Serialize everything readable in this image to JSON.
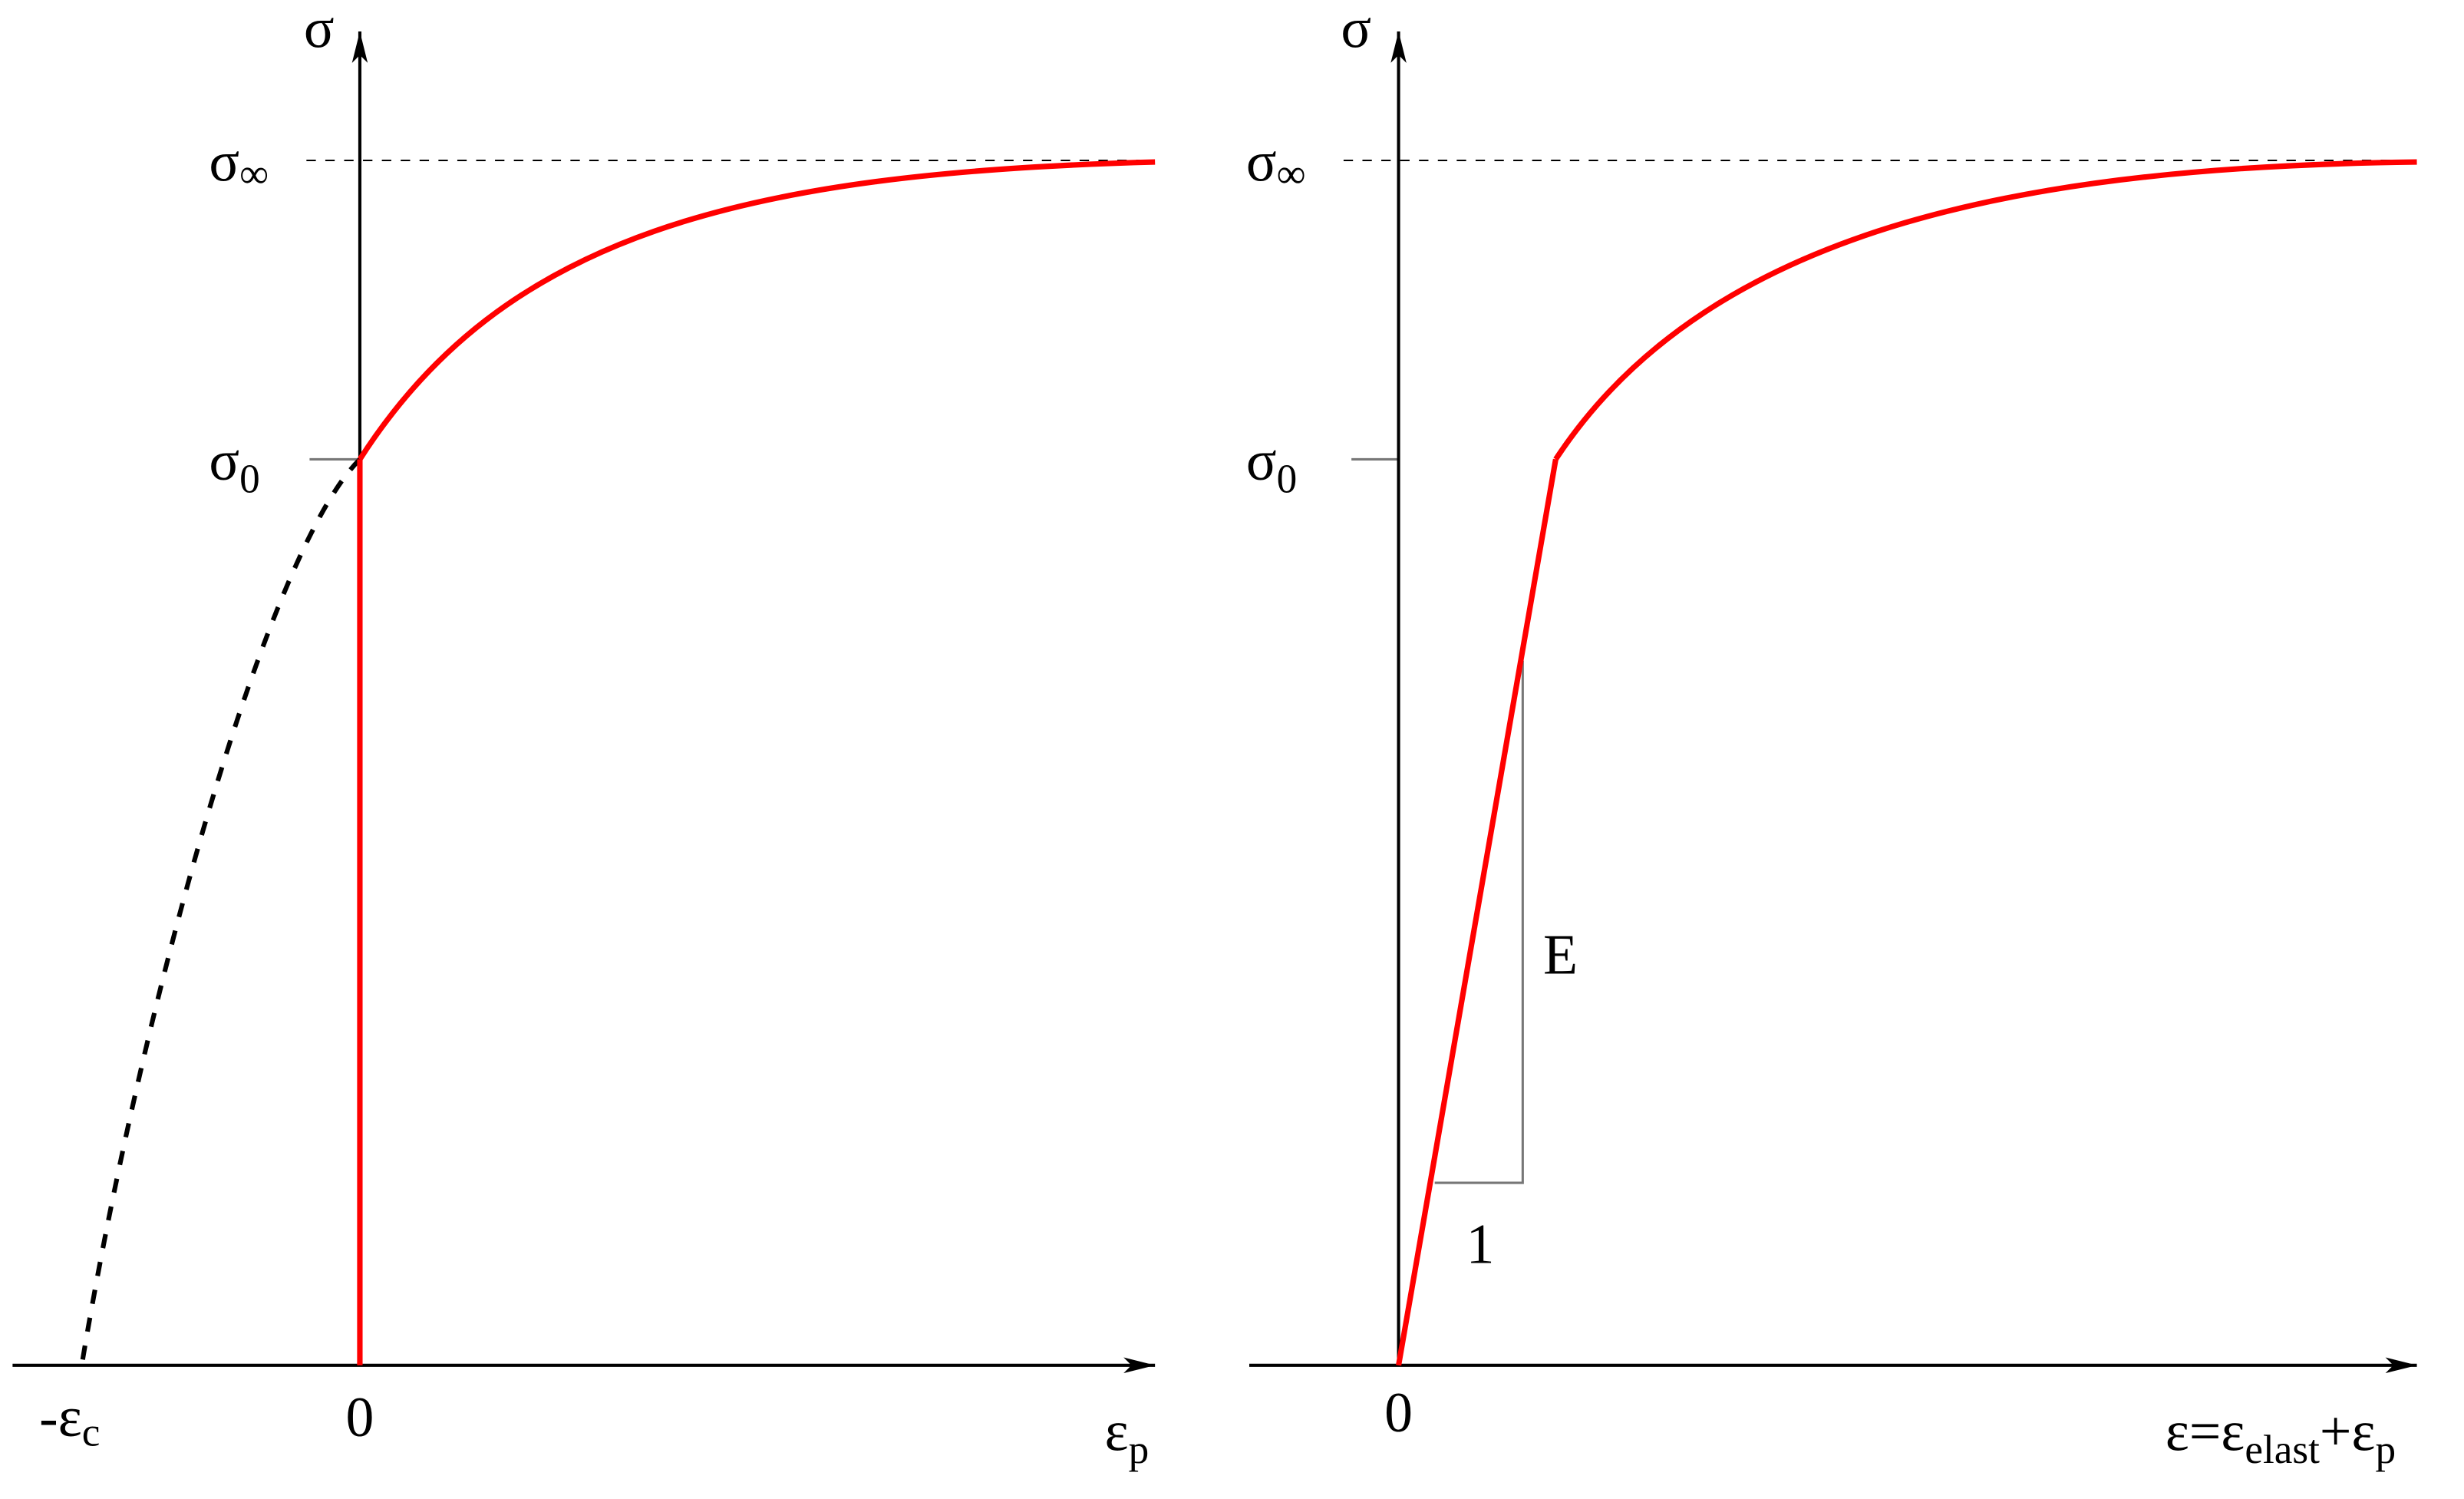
{
  "left_panel": {
    "y_axis_label": "σ",
    "sigma_inf": {
      "base": "σ",
      "sub": "∞"
    },
    "sigma_0": {
      "base": "σ",
      "sub": "0"
    },
    "neg_eps_c": {
      "base": "-ε",
      "sub": "c"
    },
    "origin": "0",
    "x_axis_label": {
      "base": "ε",
      "sub": "p"
    }
  },
  "right_panel": {
    "y_axis_label": "σ",
    "sigma_inf": {
      "base": "σ",
      "sub": "∞"
    },
    "sigma_0": {
      "base": "σ",
      "sub": "0"
    },
    "origin": "0",
    "slope_label": "E",
    "run_label": "1",
    "x_axis_label": {
      "part1": "ε=ε",
      "sub1": "elast",
      "part2": "+ε",
      "sub2": "p"
    }
  }
}
